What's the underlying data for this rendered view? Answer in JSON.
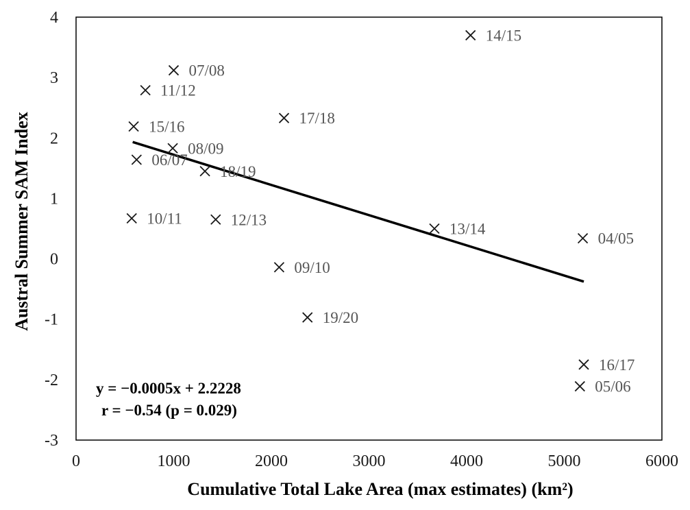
{
  "chart_data": {
    "type": "scatter",
    "title": "",
    "xlabel": "Cumulative Total Lake Area (max estimates) (km²)",
    "ylabel": "Austral Summer SAM Index",
    "xlim": [
      0,
      6000
    ],
    "ylim": [
      -3,
      4
    ],
    "xticks": [
      "0",
      "1000",
      "2000",
      "3000",
      "4000",
      "5000",
      "6000"
    ],
    "yticks": [
      "-3",
      "-2",
      "-1",
      "0",
      "1",
      "2",
      "3",
      "4"
    ],
    "grid": false,
    "marker": "x",
    "marker_color": "#1a1a1a",
    "label_color": "#555555",
    "points": [
      {
        "label": "14/15",
        "x": 4040,
        "y": 3.7
      },
      {
        "label": "07/08",
        "x": 1000,
        "y": 3.12
      },
      {
        "label": "11/12",
        "x": 710,
        "y": 2.79
      },
      {
        "label": "17/18",
        "x": 2130,
        "y": 2.33
      },
      {
        "label": "15/16",
        "x": 590,
        "y": 2.19
      },
      {
        "label": "08/09",
        "x": 990,
        "y": 1.83
      },
      {
        "label": "06/07",
        "x": 620,
        "y": 1.64
      },
      {
        "label": "18/19",
        "x": 1320,
        "y": 1.45
      },
      {
        "label": "10/11",
        "x": 570,
        "y": 0.67
      },
      {
        "label": "12/13",
        "x": 1430,
        "y": 0.65
      },
      {
        "label": "13/14",
        "x": 3670,
        "y": 0.5
      },
      {
        "label": "04/05",
        "x": 5190,
        "y": 0.34
      },
      {
        "label": "09/10",
        "x": 2080,
        "y": -0.14
      },
      {
        "label": "19/20",
        "x": 2370,
        "y": -0.97
      },
      {
        "label": "16/17",
        "x": 5200,
        "y": -1.75
      },
      {
        "label": "05/06",
        "x": 5160,
        "y": -2.11
      }
    ],
    "trendline": {
      "slope": -0.0005,
      "intercept": 2.2228,
      "x_range": [
        580,
        5200
      ],
      "color": "#000000"
    },
    "annotations": [
      "y = −0.0005x + 2.2228",
      "r = −0.54 (p = 0.029)"
    ]
  }
}
